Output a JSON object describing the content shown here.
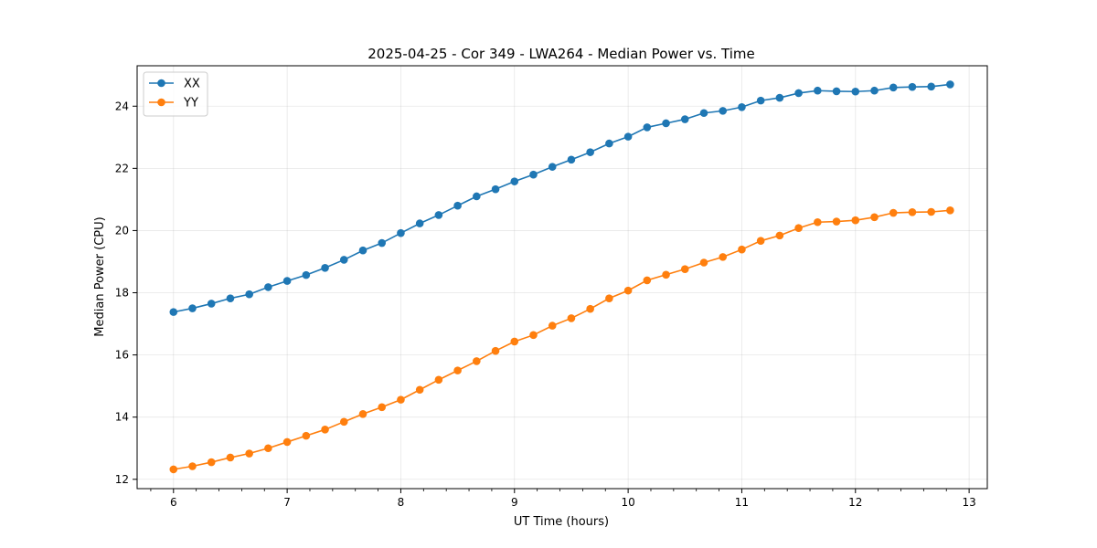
{
  "chart_data": {
    "type": "line",
    "title": "2025-04-25 - Cor 349 - LWA264 - Median Power vs. Time",
    "xlabel": "UT Time (hours)",
    "ylabel": "Median Power (CPU)",
    "xlim": [
      5.68,
      13.16
    ],
    "ylim": [
      11.7,
      25.3
    ],
    "xticks": [
      "6",
      "7",
      "8",
      "9",
      "10",
      "11",
      "12",
      "13"
    ],
    "yticks": [
      "12",
      "14",
      "16",
      "18",
      "20",
      "22",
      "24"
    ],
    "grid": true,
    "legend_position": "top-left",
    "x": [
      6.0,
      6.1667,
      6.3333,
      6.5,
      6.6667,
      6.8333,
      7.0,
      7.1667,
      7.3333,
      7.5,
      7.6667,
      7.8333,
      8.0,
      8.1667,
      8.3333,
      8.5,
      8.6667,
      8.8333,
      9.0,
      9.1667,
      9.3333,
      9.5,
      9.6667,
      9.8333,
      10.0,
      10.1667,
      10.3333,
      10.5,
      10.6667,
      10.8333,
      11.0,
      11.1667,
      11.3333,
      11.5,
      11.6667,
      11.8333,
      12.0,
      12.1667,
      12.3333,
      12.5,
      12.6667,
      12.8333
    ],
    "series": [
      {
        "name": "XX",
        "color": "#1f77b4",
        "values": [
          17.38,
          17.5,
          17.65,
          17.82,
          17.95,
          18.18,
          18.38,
          18.57,
          18.8,
          19.06,
          19.36,
          19.6,
          19.92,
          20.23,
          20.5,
          20.8,
          21.1,
          21.33,
          21.58,
          21.8,
          22.05,
          22.28,
          22.52,
          22.8,
          23.02,
          23.32,
          23.45,
          23.58,
          23.78,
          23.85,
          23.97,
          24.18,
          24.27,
          24.42,
          24.5,
          24.48,
          24.47,
          24.5,
          24.6,
          24.62,
          24.63,
          24.7
        ]
      },
      {
        "name": "YY",
        "color": "#ff7f0e",
        "values": [
          12.32,
          12.42,
          12.55,
          12.7,
          12.83,
          13.0,
          13.2,
          13.4,
          13.6,
          13.85,
          14.1,
          14.32,
          14.56,
          14.88,
          15.2,
          15.5,
          15.8,
          16.13,
          16.43,
          16.64,
          16.94,
          17.18,
          17.48,
          17.82,
          18.07,
          18.4,
          18.58,
          18.76,
          18.97,
          19.15,
          19.39,
          19.67,
          19.84,
          20.08,
          20.27,
          20.29,
          20.33,
          20.43,
          20.57,
          20.59,
          20.6,
          20.65
        ]
      }
    ]
  }
}
